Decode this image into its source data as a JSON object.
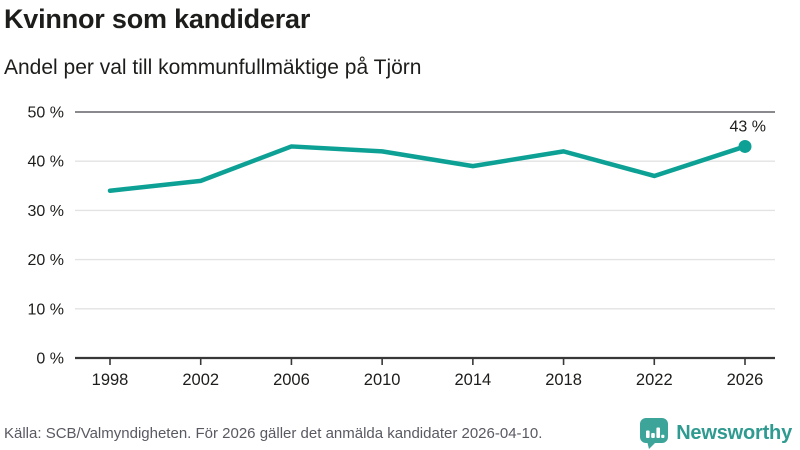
{
  "header": {
    "title": "Kvinnor som kandiderar",
    "subtitle": "Andel per val till kommunfullmäktige på Tjörn"
  },
  "chart_data": {
    "type": "line",
    "title": "Kvinnor som kandiderar",
    "subtitle": "Andel per val till kommunfullmäktige på Tjörn",
    "categories": [
      "1998",
      "2002",
      "2006",
      "2010",
      "2014",
      "2018",
      "2022",
      "2026"
    ],
    "values": [
      34,
      36,
      43,
      42,
      39,
      42,
      37,
      43
    ],
    "xlabel": "",
    "ylabel": "",
    "ylim": [
      0,
      50
    ],
    "yticks": [
      0,
      10,
      20,
      30,
      40,
      50
    ],
    "ytick_labels": [
      "0 %",
      "10 %",
      "20 %",
      "30 %",
      "40 %",
      "50 %"
    ],
    "end_label": "43 %",
    "grid": true,
    "legend_position": "none",
    "line_color": "#0da195",
    "marker_last_point_only": true
  },
  "colors": {
    "text": "#1d1d1b",
    "grid": "#e3e3e3",
    "grid_strong": "#8a8a8e",
    "axis": "#383838",
    "accent": "#0da195",
    "brand_teal": "#3da49a",
    "footer_text": "#595962"
  },
  "footer": {
    "source": "Källa: SCB/Valmyndigheten. För 2026 gäller det anmälda kandidater 2026-04-10.",
    "brand": "Newsworthy"
  }
}
